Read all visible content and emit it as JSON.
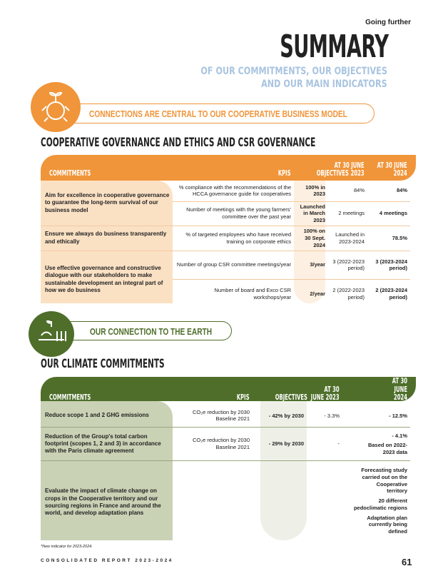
{
  "header": {
    "section": "Going further",
    "title": "SUMMARY",
    "subtitle_line1": "OF OUR COMMITMENTS, OUR OBJECTIVES",
    "subtitle_line2": "AND OUR MAIN INDICATORS"
  },
  "colors": {
    "orange": "#f0953a",
    "orange_light": "#fbe1c4",
    "green": "#4e6e2a",
    "green_light": "#c9d2b5",
    "subtitle_blue": "#a9c4e0"
  },
  "banner1": {
    "icon": "hands-plant-icon",
    "text": "CONNECTIONS ARE CENTRAL TO OUR COOPERATIVE BUSINESS MODEL"
  },
  "section1": {
    "title": "COOPERATIVE GOVERNANCE AND ETHICS AND CSR GOVERNANCE",
    "headers": [
      "COMMITMENTS",
      "KPIS",
      "OBJECTIVES",
      "AT 30 JUNE 2023",
      "AT 30 JUNE 2024"
    ],
    "rows": [
      {
        "commitment": "Aim for excellence in cooperative governance to guarantee the long-term survival of our business model",
        "kpi": "% compliance with the recommendations of the HCCA governance guide for cooperatives",
        "objective": "100% in 2023",
        "v2023": "84%",
        "v2024": "84%"
      },
      {
        "kpi": "Number of meetings with the young farmers' committee over the past year",
        "objective": "Launched in March 2023",
        "v2023": "2 meetings",
        "v2024": "4 meetings"
      },
      {
        "commitment": "Ensure we always do business transparently and ethically",
        "kpi": "% of targeted employees who have received training on corporate ethics",
        "objective": "100% on 30 Sept. 2024",
        "v2023": "Launched in 2023-2024",
        "v2024": "78.5%"
      },
      {
        "commitment": "Use effective governance and constructive dialogue with our stakeholders to make sustainable development an integral part of how we do business",
        "kpi": "Number of group CSR committee meetings/year",
        "objective": "3/year",
        "v2023": "3 (2022-2023 period)",
        "v2024": "3 (2023-2024 period)"
      },
      {
        "kpi": "Number of board and Exco CSR workshops/year",
        "objective": "2/year",
        "v2023": "2 (2022-2023 period)",
        "v2024": "2 (2023-2024 period)"
      }
    ]
  },
  "banner2": {
    "icon": "earth-crops-icon",
    "text": "OUR CONNECTION TO THE EARTH"
  },
  "section2": {
    "title": "OUR CLIMATE COMMITMENTS",
    "headers": [
      "COMMITMENTS",
      "KPIS",
      "OBJECTIVES",
      "AT 30 JUNE 2023",
      "AT 30 JUNE 2024"
    ],
    "rows": [
      {
        "commitment": "Reduce scope 1 and 2 GHG emissions",
        "kpi_line1": "CO₂e reduction by 2030",
        "kpi_line2": "Baseline 2021",
        "objective": "- 42% by 2030",
        "v2023": "- 3.3%",
        "v2024": "- 12.5%"
      },
      {
        "commitment": "Reduction of the Group's total carbon footprint (scopes 1, 2 and 3) in accordance with the Paris climate agreement",
        "kpi_line1": "CO₂e reduction by 2030",
        "kpi_line2": "Baseline 2021",
        "objective": "- 29% by 2030",
        "v2023": "-",
        "v2024_line1": "- 4.1%",
        "v2024_line2": "Based on 2022-2023 data"
      },
      {
        "commitment": "Evaluate the impact of climate change on crops in the Cooperative territory and our sourcing regions in France and around the world, and develop adaptation plans",
        "v2024_line1": "Forecasting study carried out on the Cooperative territory",
        "v2024_line2": "20 different pedoclimatic regions",
        "v2024_line3": "Adaptation plan currently being defined"
      }
    ]
  },
  "footnote": "*New indicator for 2023-2024.",
  "footer": {
    "report": "CONSOLIDATED REPORT 2023-2024",
    "page": "61"
  }
}
